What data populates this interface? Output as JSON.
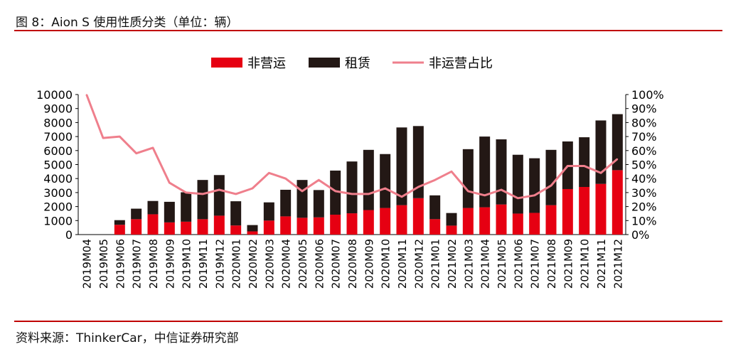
{
  "header": {
    "title": "图 8：Aion S 使用性质分类（单位：辆）"
  },
  "footer": {
    "source": "资料来源：ThinkerCar，中信证券研究部"
  },
  "colors": {
    "non_operating": "#e60012",
    "leasing": "#231815",
    "ratio_line": "#ef7f8c",
    "rule": "#c00000"
  },
  "chart_data": {
    "type": "bar",
    "stacked": true,
    "categories": [
      "2019M04",
      "2019M05",
      "2019M06",
      "2019M07",
      "2019M08",
      "2019M09",
      "2019M10",
      "2019M11",
      "2019M12",
      "2020M01",
      "2020M02",
      "2020M03",
      "2020M04",
      "2020M05",
      "2020M06",
      "2020M07",
      "2020M08",
      "2020M09",
      "2020M10",
      "2020M11",
      "2020M12",
      "2021M01",
      "2021M02",
      "2021M03",
      "2021M04",
      "2021M05",
      "2021M06",
      "2021M07",
      "2021M08",
      "2021M09",
      "2021M10",
      "2021M11",
      "2021M12"
    ],
    "series": [
      {
        "name": "非营运",
        "type": "bar",
        "axis": "left",
        "values": [
          0,
          0,
          700,
          1100,
          1450,
          870,
          920,
          1100,
          1350,
          650,
          230,
          1000,
          1300,
          1200,
          1230,
          1420,
          1520,
          1750,
          1900,
          2100,
          2600,
          1100,
          640,
          1900,
          1950,
          2150,
          1500,
          1550,
          2100,
          3250,
          3400,
          3620,
          4600
        ]
      },
      {
        "name": "租赁",
        "type": "bar",
        "axis": "left",
        "values": [
          0,
          0,
          330,
          750,
          950,
          1470,
          2100,
          2800,
          2900,
          1730,
          450,
          1300,
          1900,
          2700,
          1950,
          3150,
          3700,
          4300,
          3850,
          5550,
          5150,
          1700,
          900,
          4200,
          5050,
          4650,
          4200,
          3900,
          3950,
          3400,
          3550,
          4530,
          4000
        ]
      },
      {
        "name": "非运营占比",
        "type": "line",
        "axis": "right",
        "values": [
          100,
          69,
          70,
          58,
          62,
          37,
          30,
          29,
          32,
          29,
          33,
          44,
          40,
          31,
          39,
          31,
          29,
          29,
          33,
          27,
          34,
          39,
          45,
          31,
          28,
          32,
          26,
          28,
          35,
          49,
          49,
          44,
          54
        ]
      }
    ],
    "y_left": {
      "min": 0,
      "max": 10000,
      "step": 1000
    },
    "y_right": {
      "min": 0,
      "max": 100,
      "step": 10,
      "unit": "%"
    },
    "legend_position": "top-center",
    "grid": false
  }
}
